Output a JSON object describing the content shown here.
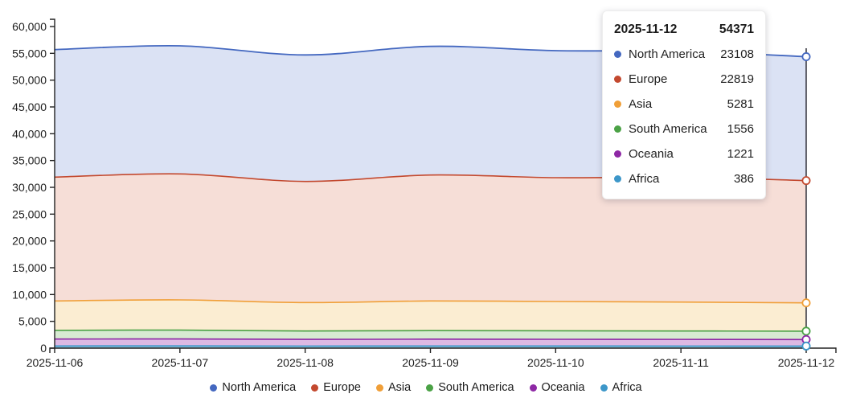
{
  "chart_data": {
    "type": "area",
    "stacked": true,
    "title": "",
    "xlabel": "",
    "ylabel": "",
    "x": [
      "2025-11-06",
      "2025-11-07",
      "2025-11-08",
      "2025-11-09",
      "2025-11-10",
      "2025-11-11",
      "2025-11-12"
    ],
    "series": [
      {
        "name": "North America",
        "color": "#4468c0",
        "fill": "#dbe2f4",
        "values": [
          23800,
          23900,
          23600,
          24000,
          23700,
          23500,
          23108
        ]
      },
      {
        "name": "Europe",
        "color": "#c3492f",
        "fill": "#f6ded7",
        "values": [
          23100,
          23500,
          22600,
          23500,
          23100,
          23300,
          22819
        ]
      },
      {
        "name": "Asia",
        "color": "#f09f38",
        "fill": "#fbedd2",
        "values": [
          5490,
          5630,
          5305,
          5525,
          5470,
          5400,
          5281
        ]
      },
      {
        "name": "South America",
        "color": "#4ba246",
        "fill": "#d7ead2",
        "values": [
          1620,
          1650,
          1560,
          1600,
          1580,
          1570,
          1556
        ]
      },
      {
        "name": "Oceania",
        "color": "#8e28a5",
        "fill": "#ddb9e3",
        "values": [
          1280,
          1300,
          1240,
          1270,
          1250,
          1235,
          1221
        ]
      },
      {
        "name": "Africa",
        "color": "#3d97c9",
        "fill": "#8fc1dd",
        "values": [
          410,
          420,
          395,
          405,
          400,
          395,
          386
        ]
      }
    ],
    "ylim": [
      0,
      60000
    ],
    "y_tick_step": 5000,
    "grid": false,
    "legend_position": "bottom",
    "axis_color": "#222222",
    "crosshair_color": "#33333d",
    "crosshair_x": "2025-11-12"
  },
  "tooltip": {
    "date": "2025-11-12",
    "total": "54371",
    "rows": [
      {
        "label": "North America",
        "value": "23108",
        "color": "#4468c0"
      },
      {
        "label": "Europe",
        "value": "22819",
        "color": "#c3492f"
      },
      {
        "label": "Asia",
        "value": "5281",
        "color": "#f09f38"
      },
      {
        "label": "South America",
        "value": "1556",
        "color": "#4ba246"
      },
      {
        "label": "Oceania",
        "value": "1221",
        "color": "#8e28a5"
      },
      {
        "label": "Africa",
        "value": "386",
        "color": "#3d97c9"
      }
    ]
  },
  "legend": {
    "items": [
      {
        "label": "North America",
        "color": "#4468c0"
      },
      {
        "label": "Europe",
        "color": "#c3492f"
      },
      {
        "label": "Asia",
        "color": "#f09f38"
      },
      {
        "label": "South America",
        "color": "#4ba246"
      },
      {
        "label": "Oceania",
        "color": "#8e28a5"
      },
      {
        "label": "Africa",
        "color": "#3d97c9"
      }
    ]
  }
}
